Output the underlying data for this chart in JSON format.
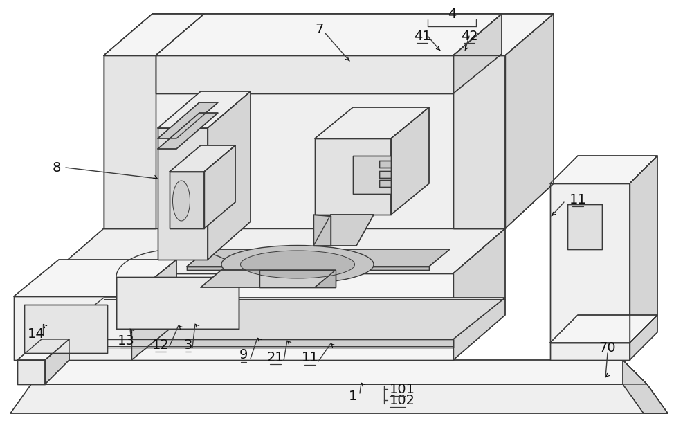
{
  "bg": "#ffffff",
  "lc": "#3a3a3a",
  "fill_white": "#ffffff",
  "fill_light": "#efefef",
  "fill_lighter": "#f5f5f5",
  "fill_mid": "#d5d5d5",
  "fill_dark": "#b8b8b8",
  "fill_inner": "#e2e2e2",
  "lw_main": 1.0,
  "lw_thick": 1.5,
  "lw_thin": 0.7,
  "font_size": 14,
  "figsize": [
    10.0,
    6.24
  ],
  "dpi": 100
}
